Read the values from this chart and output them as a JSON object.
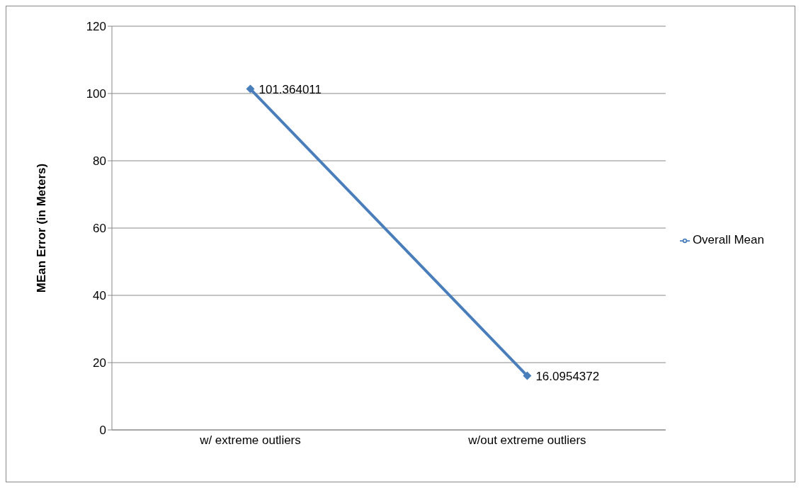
{
  "chart_data": {
    "type": "line",
    "ylabel": "MEan Error (in Meters)",
    "categories": [
      "w/ extreme outliers",
      "w/out extreme outliers"
    ],
    "series": [
      {
        "name": "Overall Mean",
        "color": "#4a7ebb",
        "values": [
          101.364011,
          16.0954372
        ]
      }
    ],
    "ylim": [
      0,
      120
    ],
    "yticks": [
      0,
      20,
      40,
      60,
      80,
      100,
      120
    ],
    "grid": "y",
    "legend": "right",
    "marker": "diamond",
    "line_style": "solid",
    "data_labels": true
  }
}
